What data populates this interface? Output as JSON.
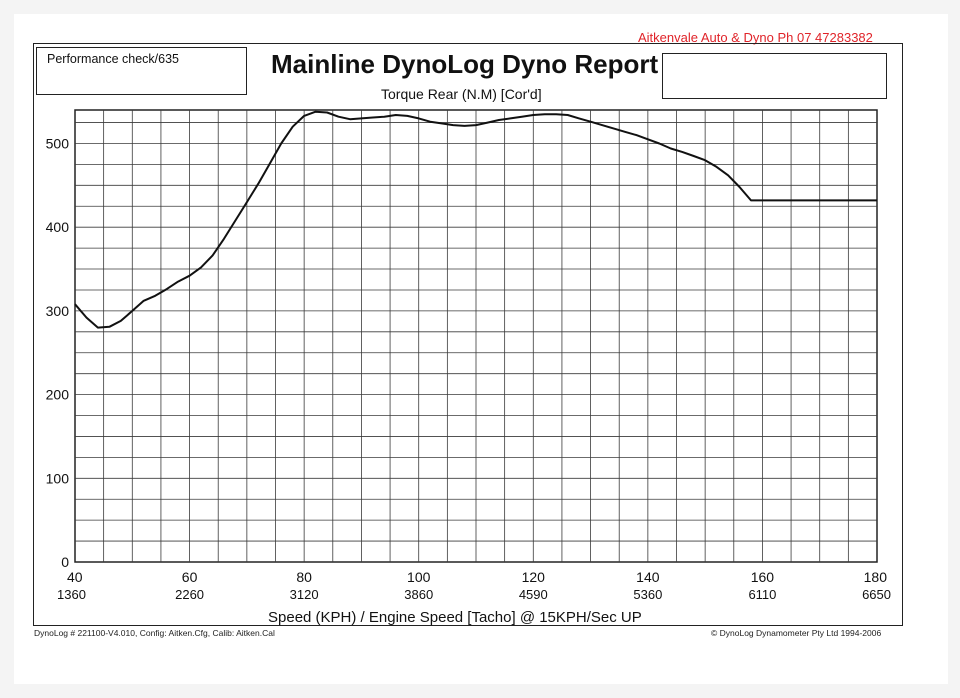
{
  "header": {
    "company": "Aitkenvale Auto & Dyno  Ph 07 47283382",
    "title": "Mainline DynoLog Dyno Report",
    "subtitle": "Torque Rear (N.M) [Cor'd]"
  },
  "footer": {
    "left": "DynoLog # 221100-V4.010, Config: Aitken.Cfg, Calib: Aitken.Cal",
    "right": "© DynoLog Dynamometer Pty Ltd 1994-2006"
  },
  "colors": {
    "series_black": "#111111",
    "series_red": "#e0242a",
    "grid": "#333333"
  },
  "chart_data": {
    "type": "line",
    "title": "Mainline DynoLog Dyno Report",
    "subtitle": "Torque Rear (N.M) [Cor'd]",
    "xlabel": "Speed (KPH) / Engine Speed [Tacho] @ 15KPH/Sec UP",
    "ylabel": "",
    "xlim": [
      40,
      180
    ],
    "ylim": [
      0,
      540
    ],
    "grid": true,
    "legend_position": "top-left",
    "y_ticks": [
      "0",
      "100",
      "200",
      "300",
      "400",
      "500"
    ],
    "x_ticks": [
      {
        "speed": "40",
        "rpm": "1360"
      },
      {
        "speed": "60",
        "rpm": "2260"
      },
      {
        "speed": "80",
        "rpm": "3120"
      },
      {
        "speed": "100",
        "rpm": "3860"
      },
      {
        "speed": "120",
        "rpm": "4590"
      },
      {
        "speed": "140",
        "rpm": "5360"
      },
      {
        "speed": "160",
        "rpm": "6110"
      },
      {
        "speed": "180",
        "rpm": "6650"
      }
    ],
    "series": [
      {
        "name": "Performance check/635",
        "color": "#111111",
        "x": [
          40,
          42,
          44,
          46,
          48,
          50,
          52,
          54,
          56,
          58,
          60,
          62,
          64,
          66,
          68,
          70,
          72,
          74,
          76,
          78,
          80,
          82,
          84,
          86,
          88,
          90,
          92,
          94,
          96,
          98,
          100,
          102,
          104,
          106,
          108,
          110,
          112,
          114,
          116,
          118,
          120,
          122,
          124,
          126,
          128,
          130,
          132,
          134,
          136,
          138,
          140,
          142,
          144,
          146,
          148,
          150,
          152,
          154,
          156,
          158,
          160,
          162,
          164,
          166,
          168,
          170,
          172,
          174,
          176,
          178,
          180
        ],
        "values": [
          308,
          292,
          280,
          281,
          288,
          300,
          312,
          318,
          326,
          335,
          342,
          352,
          366,
          386,
          408,
          430,
          452,
          476,
          500,
          520,
          533,
          538,
          537,
          532,
          529,
          530,
          531,
          532,
          534,
          533,
          530,
          526,
          524,
          522,
          521,
          522,
          525,
          528,
          530,
          532,
          534,
          535,
          535,
          534,
          530,
          526,
          522,
          518,
          514,
          510,
          505,
          500,
          494,
          490,
          485,
          480,
          472,
          462,
          448,
          432,
          432,
          432,
          432,
          432,
          432,
          432,
          432,
          432,
          432,
          432,
          432
        ],
        "note_trimmed": true
      }
    ]
  }
}
